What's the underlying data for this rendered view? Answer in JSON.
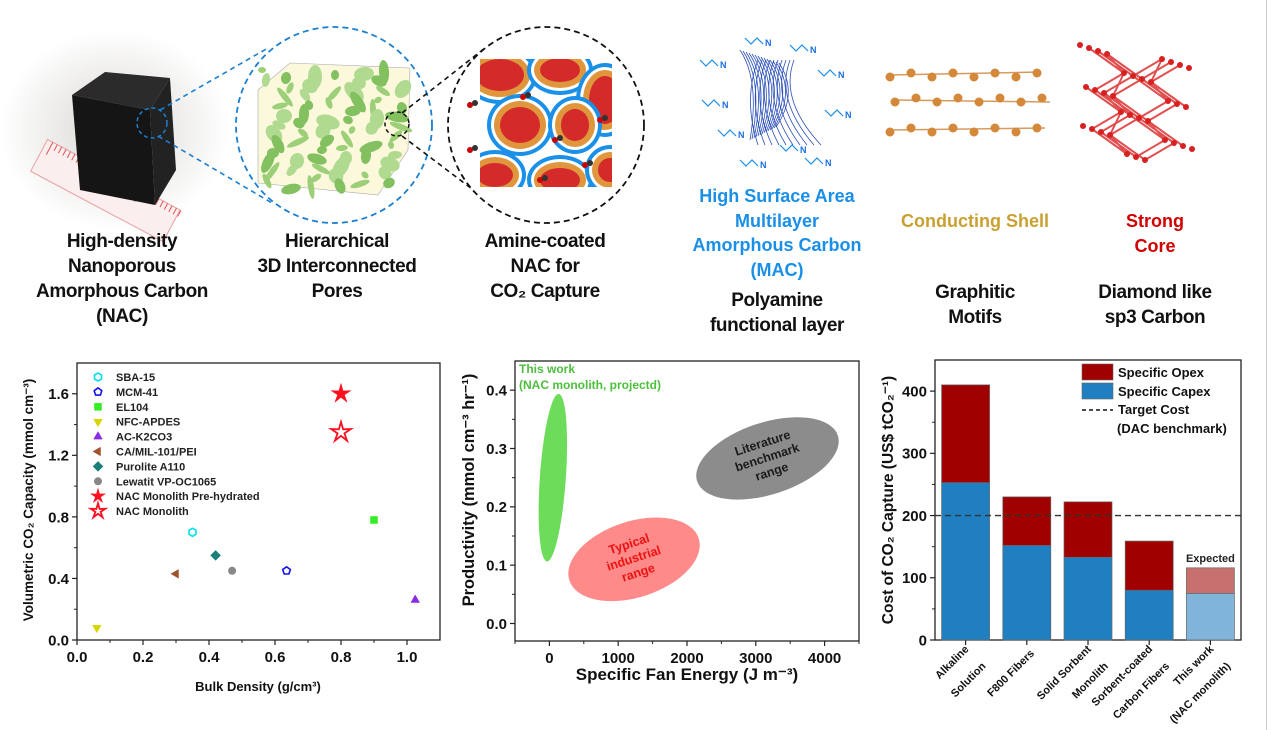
{
  "captions": {
    "nac": [
      "High-density",
      "Nanoporous",
      "Amorphous Carbon",
      "(NAC)"
    ],
    "pores": [
      "Hierarchical",
      "3D Interconnected",
      "Pores"
    ],
    "amine": [
      "Amine-coated",
      "NAC for",
      "CO₂ Capture"
    ],
    "mac": [
      "High Surface Area",
      "Multilayer",
      "Amorphous Carbon",
      "(MAC)"
    ],
    "polyamine": [
      "Polyamine",
      "functional layer"
    ],
    "shell": [
      "Conducting Shell"
    ],
    "graphitic": [
      "Graphitic",
      "Motifs"
    ],
    "core": [
      "Strong",
      "Core"
    ],
    "diamond": [
      "Diamond like",
      "sp3 Carbon"
    ]
  },
  "colors": {
    "mac_blue": "#1a8fe8",
    "shell_gold": "#c9a032",
    "core_red": "#d10000"
  },
  "chart_data": [
    {
      "type": "scatter",
      "xlabel": "Bulk Density (g/cm³)",
      "ylabel": "Volumetric CO₂ Capacity (mmol cm⁻³)",
      "xlim": [
        0,
        1.1
      ],
      "ylim": [
        0,
        1.8
      ],
      "xticks": [
        "0.0",
        "0.2",
        "0.4",
        "0.6",
        "0.8",
        "1.0"
      ],
      "yticks": [
        "0.0",
        "0.4",
        "0.8",
        "1.2",
        "1.6"
      ],
      "legend_position": "top-left",
      "series": [
        {
          "name": "SBA-15",
          "x": 0.35,
          "y": 0.7,
          "marker": "hexagon-open",
          "color": "#00e0e8"
        },
        {
          "name": "MCM-41",
          "x": 0.635,
          "y": 0.45,
          "marker": "pentagon-open",
          "color": "#1010f0"
        },
        {
          "name": "EL104",
          "x": 0.9,
          "y": 0.78,
          "marker": "square",
          "color": "#33ee22"
        },
        {
          "name": "NFC-APDES",
          "x": 0.06,
          "y": 0.08,
          "marker": "triangle-down",
          "color": "#d8d400"
        },
        {
          "name": "AC-K2CO3",
          "x": 1.025,
          "y": 0.26,
          "marker": "triangle-up",
          "color": "#8a2be2"
        },
        {
          "name": "CA/MIL-101/PEI",
          "x": 0.3,
          "y": 0.43,
          "marker": "triangle-left",
          "color": "#a0522d"
        },
        {
          "name": "Purolite A110",
          "x": 0.42,
          "y": 0.55,
          "marker": "diamond",
          "color": "#1a7f7a"
        },
        {
          "name": "Lewatit VP-OC1065",
          "x": 0.47,
          "y": 0.45,
          "marker": "circle",
          "color": "#888888"
        },
        {
          "name": "NAC Monolith Pre-hydrated",
          "x": 0.8,
          "y": 1.6,
          "marker": "star",
          "color": "#ff1020"
        },
        {
          "name": "NAC Monolith",
          "x": 0.8,
          "y": 1.35,
          "marker": "star-open",
          "color": "#ff1020"
        }
      ]
    },
    {
      "type": "scatter",
      "xlabel": "Specific Fan Energy (J m⁻³)",
      "ylabel": "Productivity (mmol cm⁻³ hr⁻¹)",
      "xlim": [
        -500,
        4500
      ],
      "ylim": [
        -0.03,
        0.45
      ],
      "xticks": [
        "0",
        "1000",
        "2000",
        "3000",
        "4000"
      ],
      "yticks": [
        "0.0",
        "0.1",
        "0.2",
        "0.3",
        "0.4"
      ],
      "regions": [
        {
          "label": [
            "This work",
            "(NAC monolith, projectd)"
          ],
          "x": 50,
          "y": 0.25,
          "x_range": [
            -120,
            220
          ],
          "y_range": [
            0.11,
            0.395
          ],
          "color": "#6cdc5a",
          "text_color": "#4cbf3c"
        },
        {
          "label": [
            "Typical",
            "industrial",
            "range"
          ],
          "x": 1230,
          "y": 0.11,
          "x_range": [
            270,
            2200
          ],
          "y_range": [
            0.03,
            0.19
          ],
          "color": "#ff8a8a",
          "text_color": "#ee1111"
        },
        {
          "label": [
            "Literature",
            "benchmark",
            "range"
          ],
          "x": 3170,
          "y": 0.283,
          "x_range": [
            2150,
            4250
          ],
          "y_range": [
            0.21,
            0.36
          ],
          "color": "#8c8c8c",
          "text_color": "#1a1a1a"
        }
      ]
    },
    {
      "type": "bar",
      "stacked": true,
      "ylabel": "Cost of CO₂ Capture (US$ tCO₂⁻¹)",
      "ylim": [
        0,
        450
      ],
      "yticks": [
        "0",
        "100",
        "200",
        "300",
        "400"
      ],
      "categories": [
        [
          "Alkaline",
          "Solution"
        ],
        [
          "F800 Fibers"
        ],
        [
          "Solid Sorbent",
          "Monolith"
        ],
        [
          "Sorbent-coated",
          "Carbon Fibers"
        ],
        [
          "This work",
          "(NAC monolith)"
        ]
      ],
      "series": [
        {
          "name": "Specific Capex",
          "values": [
            253,
            152,
            133,
            80,
            75
          ],
          "color": "#1f7fc0",
          "expected_color": "#80b4d8"
        },
        {
          "name": "Specific Opex",
          "values": [
            157,
            78,
            89,
            79,
            41
          ],
          "color": "#a00000",
          "expected_color": "#c87070"
        }
      ],
      "totals": [
        410,
        230,
        222,
        159,
        116
      ],
      "target_line": {
        "value": 200,
        "label": [
          "Target Cost",
          "(DAC benchmark)"
        ]
      },
      "expected_label": "Expected",
      "expected_index": 4,
      "legend_position": "top-right"
    }
  ]
}
